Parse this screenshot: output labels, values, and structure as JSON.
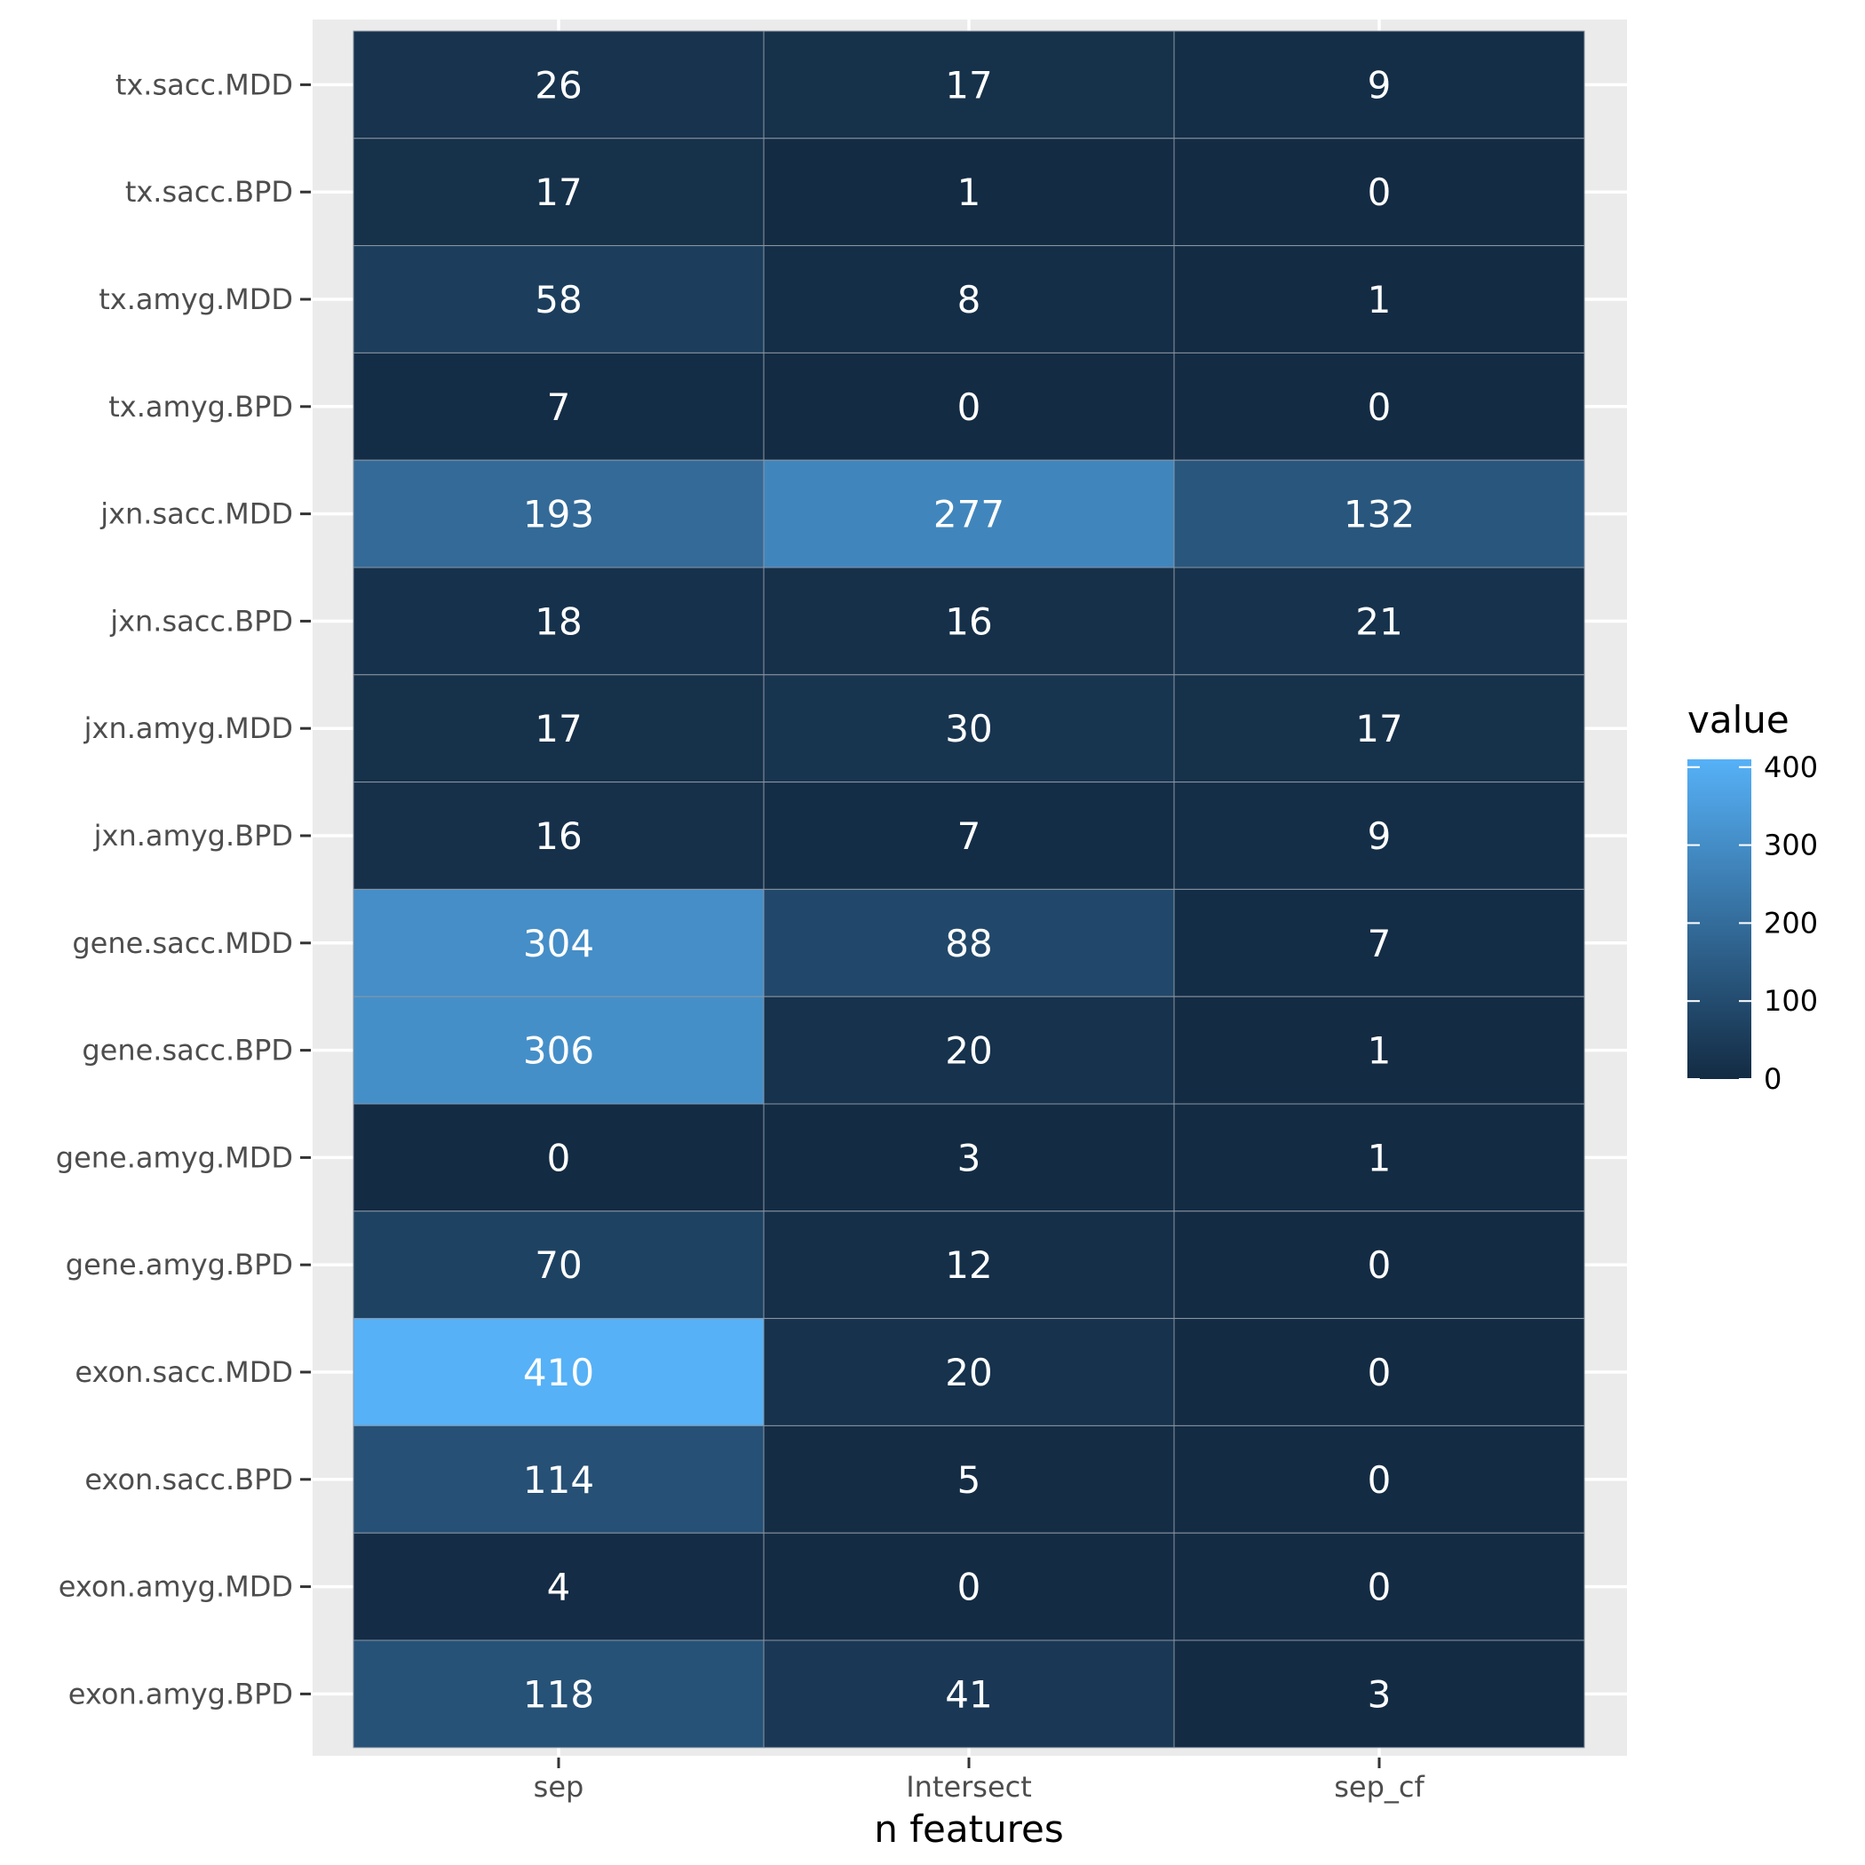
{
  "chart_data": {
    "type": "heatmap",
    "xlabel": "n features",
    "ylabel": "",
    "x_categories": [
      "sep",
      "Intersect",
      "sep_cf"
    ],
    "y_categories": [
      "tx.sacc.MDD",
      "tx.sacc.BPD",
      "tx.amyg.MDD",
      "tx.amyg.BPD",
      "jxn.sacc.MDD",
      "jxn.sacc.BPD",
      "jxn.amyg.MDD",
      "jxn.amyg.BPD",
      "gene.sacc.MDD",
      "gene.sacc.BPD",
      "gene.amyg.MDD",
      "gene.amyg.BPD",
      "exon.sacc.MDD",
      "exon.sacc.BPD",
      "exon.amyg.MDD",
      "exon.amyg.BPD"
    ],
    "values": [
      [
        26,
        17,
        9
      ],
      [
        17,
        1,
        0
      ],
      [
        58,
        8,
        1
      ],
      [
        7,
        0,
        0
      ],
      [
        193,
        277,
        132
      ],
      [
        18,
        16,
        21
      ],
      [
        17,
        30,
        17
      ],
      [
        16,
        7,
        9
      ],
      [
        304,
        88,
        7
      ],
      [
        306,
        20,
        1
      ],
      [
        0,
        3,
        1
      ],
      [
        70,
        12,
        0
      ],
      [
        410,
        20,
        0
      ],
      [
        114,
        5,
        0
      ],
      [
        4,
        0,
        0
      ],
      [
        118,
        41,
        3
      ]
    ],
    "color_scale": {
      "low": "#132B43",
      "high": "#56B1F7",
      "min": 0,
      "max": 410
    },
    "legend": {
      "title": "value",
      "ticks": [
        0,
        100,
        200,
        300,
        400
      ],
      "position": "right"
    },
    "panel_background": "#EBEBEB",
    "grid": true
  }
}
